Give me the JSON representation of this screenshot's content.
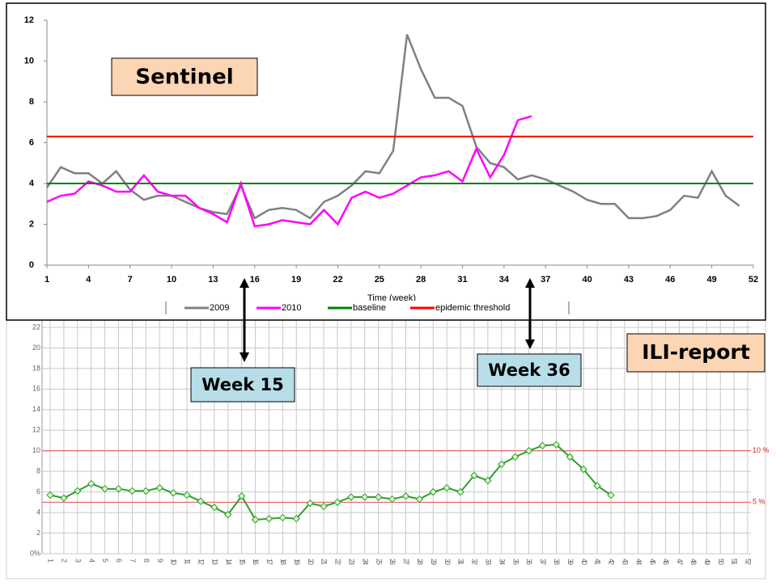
{
  "chart_data": [
    {
      "type": "line",
      "xlabel": "Time (week)",
      "annotations": [
        "Sentinel",
        "Week 15",
        "Week 36"
      ],
      "xlim": [
        1,
        52
      ],
      "xticks": [
        1,
        4,
        7,
        10,
        13,
        16,
        19,
        22,
        25,
        28,
        31,
        34,
        37,
        40,
        43,
        46,
        49,
        52
      ],
      "ylim": [
        0,
        12
      ],
      "yticks": [
        0,
        2,
        4,
        6,
        8,
        10,
        12
      ],
      "series": [
        {
          "name": "2009",
          "color": "#808080",
          "values": [
            3.8,
            4.8,
            4.5,
            4.5,
            4.0,
            4.6,
            3.7,
            3.2,
            3.4,
            3.4,
            3.1,
            2.8,
            2.6,
            2.5,
            3.9,
            2.3,
            2.7,
            2.8,
            2.7,
            2.3,
            3.1,
            3.4,
            3.9,
            4.6,
            4.5,
            5.6,
            11.3,
            9.6,
            8.2,
            8.2,
            7.8,
            5.8,
            5.0,
            4.8,
            4.2,
            4.4,
            4.2,
            3.9,
            3.6,
            3.2,
            3.0,
            3.0,
            2.3,
            2.3,
            2.4,
            2.7,
            3.4,
            3.3,
            4.6,
            3.4,
            2.9
          ]
        },
        {
          "name": "2010",
          "color": "#ff00ff",
          "values": [
            3.1,
            3.4,
            3.5,
            4.1,
            3.9,
            3.6,
            3.6,
            4.4,
            3.6,
            3.4,
            3.4,
            2.8,
            2.5,
            2.1,
            4.0,
            1.9,
            2.0,
            2.2,
            2.1,
            2.0,
            2.7,
            2.0,
            3.3,
            3.6,
            3.3,
            3.5,
            3.9,
            4.3,
            4.4,
            4.6,
            4.1,
            5.7,
            4.3,
            5.4,
            7.1,
            7.3
          ]
        },
        {
          "name": "baseline",
          "color": "#008000",
          "value": 4.0
        },
        {
          "name": "epidemic threshold",
          "color": "#ff0000",
          "value": 6.3
        }
      ]
    },
    {
      "type": "line",
      "annotations": [
        "ILI-report"
      ],
      "xlim": [
        1,
        52
      ],
      "xticks": [
        1,
        2,
        3,
        4,
        5,
        6,
        7,
        8,
        9,
        10,
        11,
        12,
        13,
        14,
        15,
        16,
        17,
        18,
        19,
        20,
        21,
        22,
        23,
        24,
        25,
        26,
        27,
        28,
        29,
        30,
        31,
        32,
        33,
        34,
        35,
        36,
        37,
        38,
        39,
        40,
        41,
        42,
        43,
        44,
        45,
        46,
        47,
        48,
        49,
        50,
        51,
        52
      ],
      "ylim": [
        0,
        22
      ],
      "yticks": [
        {
          "value": 0,
          "label": "0%"
        },
        2,
        4,
        6,
        8,
        10,
        12,
        14,
        16,
        18,
        20,
        22
      ],
      "reference_lines": [
        {
          "value": 10,
          "label": "10 %"
        },
        {
          "value": 5,
          "label": "5 %"
        }
      ],
      "series": [
        {
          "color": "#2e9e2e",
          "values": [
            5.7,
            5.4,
            6.1,
            6.8,
            6.3,
            6.3,
            6.1,
            6.1,
            6.4,
            5.9,
            5.7,
            5.1,
            4.5,
            3.8,
            5.6,
            3.3,
            3.4,
            3.5,
            3.4,
            4.9,
            4.6,
            5.0,
            5.5,
            5.5,
            5.5,
            5.3,
            5.6,
            5.3,
            6.0,
            6.4,
            6.0,
            7.6,
            7.1,
            8.7,
            9.4,
            10.0,
            10.5,
            10.6,
            9.4,
            8.2,
            6.6,
            5.7
          ]
        }
      ]
    }
  ]
}
